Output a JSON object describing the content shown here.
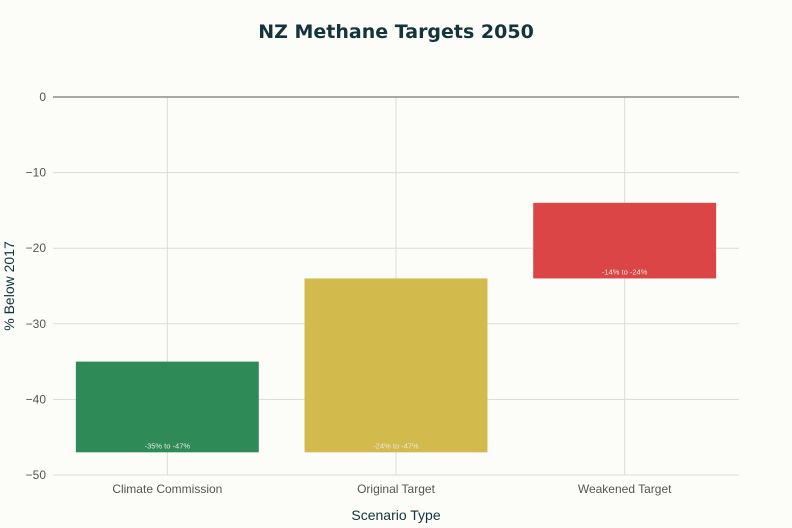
{
  "chart_data": {
    "type": "bar",
    "title": "NZ Methane Targets 2050",
    "xlabel": "Scenario Type",
    "ylabel": "% Below 2017",
    "ylim": [
      -50,
      0
    ],
    "yticks": [
      0,
      -10,
      -20,
      -30,
      -40,
      -50
    ],
    "grid": true,
    "categories": [
      "Climate Commission",
      "Original Target",
      "Weakened Target"
    ],
    "bars": [
      {
        "category": "Climate Commission",
        "low": -47,
        "high": -35,
        "label": "-35% to -47%",
        "color": "#2e8b57"
      },
      {
        "category": "Original Target",
        "low": -47,
        "high": -24,
        "label": "-24% to -47%",
        "color": "#d2ba4c"
      },
      {
        "category": "Weakened Target",
        "low": -24,
        "high": -14,
        "label": "-14% to -24%",
        "color": "#db4545"
      }
    ]
  }
}
